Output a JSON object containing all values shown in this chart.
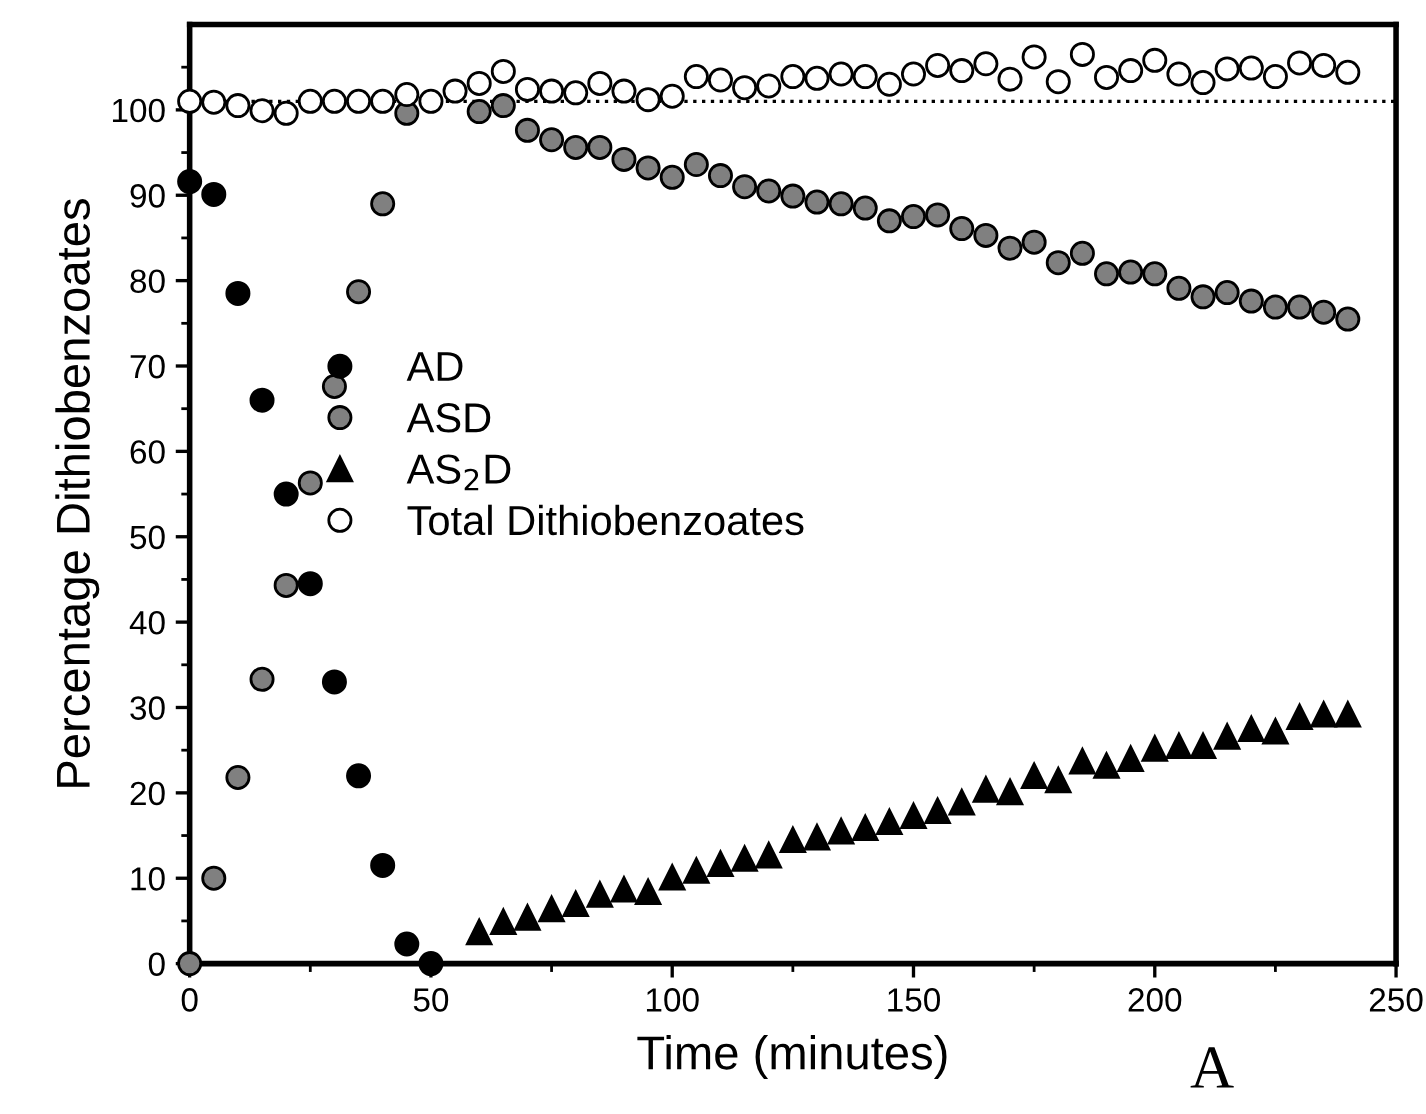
{
  "chart_data": {
    "type": "scatter",
    "xlabel": "Time (minutes)",
    "ylabel": "Percentage Dithiobenzoates",
    "xlim": [
      0,
      250
    ],
    "xticks": [
      0,
      50,
      100,
      150,
      200,
      250
    ],
    "ylim": [
      0,
      110
    ],
    "yticks": [
      0,
      10,
      20,
      30,
      40,
      50,
      60,
      70,
      80,
      90,
      100
    ],
    "grid": false,
    "legend": "center",
    "annotations": [
      "A"
    ],
    "ref_lines": [
      {
        "axis": "y",
        "value": 101,
        "line_style": "dotted",
        "color": "#000000"
      }
    ],
    "series": [
      {
        "name": "AD",
        "color": "#000000",
        "marker": "circle",
        "x": [
          0,
          5,
          10,
          15,
          20,
          25,
          30,
          35,
          40,
          45,
          50
        ],
        "values": [
          91.6,
          90.1,
          78.5,
          66,
          55,
          44.5,
          33,
          22,
          11.5,
          2.3,
          0
        ]
      },
      {
        "name": "ASD",
        "color": "#808080",
        "marker": "circle",
        "x": [
          0,
          5,
          10,
          15,
          20,
          25,
          30,
          35,
          40,
          45,
          60,
          65,
          70,
          75,
          80,
          85,
          90,
          95,
          100,
          105,
          110,
          115,
          120,
          125,
          130,
          135,
          140,
          145,
          150,
          155,
          160,
          165,
          170,
          175,
          180,
          185,
          190,
          195,
          200,
          205,
          210,
          215,
          220,
          225,
          230,
          235,
          240
        ],
        "values": [
          0,
          10,
          21.8,
          33.3,
          44.3,
          56.3,
          67.6,
          78.7,
          89,
          99.6,
          99.8,
          100.5,
          97.6,
          96.5,
          95.6,
          95.6,
          94.2,
          93.2,
          92.1,
          93.6,
          92.3,
          91,
          90.5,
          89.9,
          89.2,
          89,
          88.5,
          87,
          87.5,
          87.7,
          86.1,
          85.3,
          83.8,
          84.5,
          82.1,
          83.2,
          80.8,
          81,
          80.8,
          79.1,
          78.1,
          78.6,
          77.6,
          76.9,
          76.9,
          76.3,
          75.5
        ]
      },
      {
        "name": "AS$_{2}$D",
        "color": "#000000",
        "marker": "triangle",
        "x": [
          60,
          65,
          70,
          75,
          80,
          85,
          90,
          95,
          100,
          105,
          110,
          115,
          120,
          125,
          130,
          135,
          140,
          145,
          150,
          155,
          160,
          165,
          170,
          175,
          180,
          185,
          190,
          195,
          200,
          205,
          210,
          215,
          220,
          225,
          230,
          235,
          240
        ],
        "values": [
          3.7,
          4.9,
          5.4,
          6.4,
          7,
          8.1,
          8.7,
          8.4,
          10.1,
          10.9,
          11.7,
          12.3,
          12.7,
          14.5,
          14.8,
          15.5,
          15.9,
          16.6,
          17.3,
          17.9,
          18.9,
          20.4,
          20.1,
          22,
          21.5,
          23.7,
          23.2,
          24,
          25.2,
          25.5,
          25.5,
          26.6,
          27.5,
          27.2,
          28.9,
          29.2,
          29.2
        ]
      },
      {
        "name": "Total Dithiobenzoates",
        "color": "#ffffff",
        "marker": "circle",
        "x": [
          0,
          5,
          10,
          15,
          20,
          25,
          30,
          35,
          40,
          45,
          50,
          55,
          60,
          65,
          70,
          75,
          80,
          85,
          90,
          95,
          100,
          105,
          110,
          115,
          120,
          125,
          130,
          135,
          140,
          145,
          150,
          155,
          160,
          165,
          170,
          175,
          180,
          185,
          190,
          195,
          200,
          205,
          210,
          215,
          220,
          225,
          230,
          235,
          240
        ],
        "values": [
          101,
          100.9,
          100.5,
          99.9,
          99.6,
          101,
          101,
          101,
          101,
          101.8,
          101,
          102.2,
          103.1,
          104.5,
          102.4,
          102.2,
          102,
          103.1,
          102.2,
          101.2,
          101.6,
          103.9,
          103.5,
          102.6,
          102.8,
          103.9,
          103.7,
          104.2,
          103.9,
          103,
          104.2,
          105.2,
          104.6,
          105.4,
          103.6,
          106.2,
          103.3,
          106.5,
          103.8,
          104.6,
          105.8,
          104.2,
          103.2,
          104.8,
          104.9,
          103.9,
          105.5,
          105.2,
          104.4
        ]
      }
    ]
  }
}
